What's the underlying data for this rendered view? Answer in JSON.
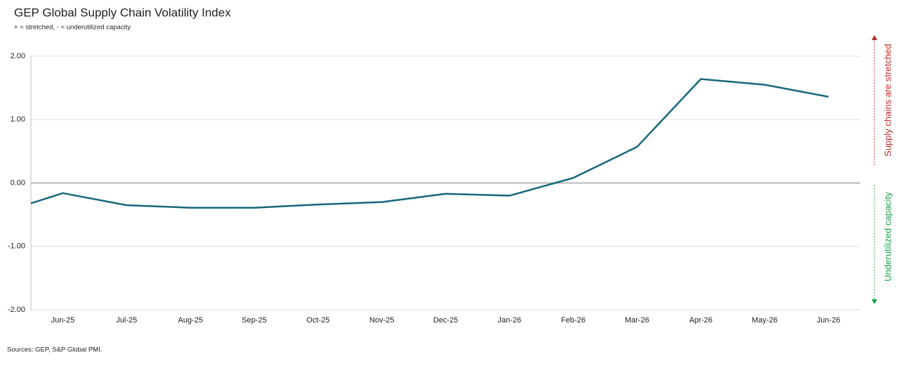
{
  "chart_data": {
    "type": "line",
    "title": "GEP Global Supply Chain Volatility Index",
    "subtitle": "+ = stretched, - = underutilized capacity",
    "categories": [
      null,
      "Jun-25",
      "Jul-25",
      "Aug-25",
      "Sep-25",
      "Oct-25",
      "Nov-25",
      "Dec-25",
      "Jan-26",
      "Feb-26",
      "Mar-26",
      "Apr-26",
      "May-26",
      "Jun-26"
    ],
    "values": [
      -0.32,
      -0.16,
      -0.35,
      -0.39,
      -0.39,
      -0.34,
      -0.3,
      -0.17,
      -0.2,
      0.08,
      0.57,
      1.64,
      1.55,
      1.36
    ],
    "color": "#17677b",
    "ylim": [
      -2,
      2
    ],
    "yticks": [
      {
        "value": -2,
        "label": "-2.00"
      },
      {
        "value": -1,
        "label": "-1.00"
      },
      {
        "value": 0,
        "label": "0.00"
      },
      {
        "value": 1,
        "label": "1.00"
      },
      {
        "value": 2,
        "label": "2.00"
      }
    ],
    "grid": true,
    "annotations": [
      {
        "text": "Supply chains are stretched",
        "color": "#c0282d",
        "direction": "up"
      },
      {
        "text": "Underutilized capacity",
        "color": "#1aa14a",
        "direction": "down"
      }
    ],
    "source": "Sources: GEP, S&P Global PMI."
  }
}
